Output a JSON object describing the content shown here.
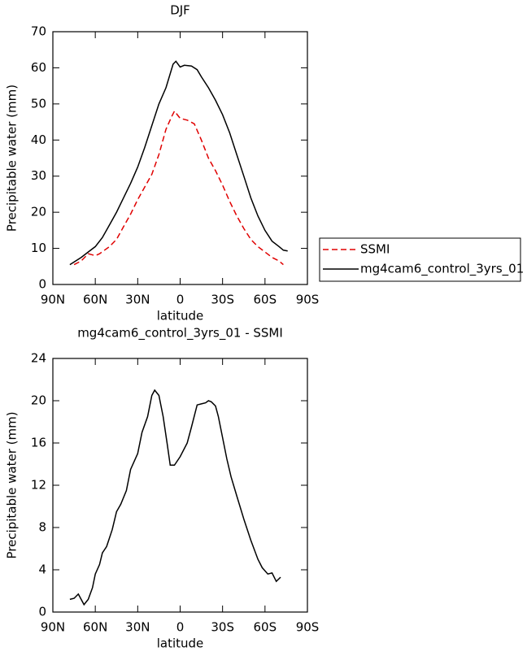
{
  "chart_data": [
    {
      "type": "line",
      "title": "DJF",
      "xlabel": "latitude",
      "ylabel": "Precipitable water (mm)",
      "xlim": [
        90,
        -90
      ],
      "xticks": [
        {
          "value": 90,
          "label": "90N"
        },
        {
          "value": 60,
          "label": "60N"
        },
        {
          "value": 30,
          "label": "30N"
        },
        0,
        {
          "value": -30,
          "label": "30S"
        },
        {
          "value": -60,
          "label": "60S"
        },
        {
          "value": -90,
          "label": "90S"
        }
      ],
      "ylim": [
        0,
        70
      ],
      "yticks": [
        0,
        10,
        20,
        30,
        40,
        50,
        60,
        70
      ],
      "legend": "right",
      "series": [
        {
          "name": "SSMI",
          "color": "#e00000",
          "dash": true,
          "x": [
            75,
            70,
            65,
            60,
            57,
            50,
            45,
            40,
            35,
            30,
            25,
            20,
            15,
            10,
            6,
            4,
            0,
            -5,
            -10,
            -15,
            -20,
            -25,
            -30,
            -35,
            -40,
            -45,
            -50,
            -55,
            -60,
            -65,
            -70,
            -73
          ],
          "values": [
            5.5,
            6.5,
            8.5,
            8,
            8.5,
            10.5,
            12.5,
            16,
            19.5,
            23.5,
            27,
            30.5,
            36,
            43,
            46.5,
            48,
            46,
            45.5,
            44.5,
            40,
            35,
            31.5,
            27.5,
            23,
            19,
            15.5,
            12.5,
            10.5,
            9,
            7.5,
            6.5,
            5.5
          ]
        },
        {
          "name": "mg4cam6_control_3yrs_01",
          "color": "#000000",
          "dash": false,
          "x": [
            78,
            70,
            65,
            60,
            55,
            50,
            45,
            40,
            35,
            30,
            25,
            20,
            15,
            10,
            5,
            3,
            0,
            -3,
            -8,
            -12,
            -15,
            -20,
            -25,
            -30,
            -35,
            -40,
            -45,
            -50,
            -55,
            -60,
            -65,
            -70,
            -73,
            -76
          ],
          "values": [
            5.5,
            7.5,
            9,
            10.5,
            13,
            16.5,
            20,
            24,
            28,
            32.5,
            38,
            44,
            50,
            54.5,
            61,
            61.8,
            60.2,
            60.7,
            60.5,
            59.5,
            57.5,
            54.5,
            51,
            47,
            42,
            36,
            30,
            24,
            19,
            15,
            12,
            10.5,
            9.5,
            9.3
          ]
        }
      ]
    },
    {
      "type": "line",
      "title": "mg4cam6_control_3yrs_01 - SSMI",
      "xlabel": "latitude",
      "ylabel": "Precipitable water (mm)",
      "xlim": [
        90,
        -90
      ],
      "xticks": [
        {
          "value": 90,
          "label": "90N"
        },
        {
          "value": 60,
          "label": "60N"
        },
        {
          "value": 30,
          "label": "30N"
        },
        0,
        {
          "value": -30,
          "label": "30S"
        },
        {
          "value": -60,
          "label": "60S"
        },
        {
          "value": -90,
          "label": "90S"
        }
      ],
      "ylim": [
        0,
        24
      ],
      "yticks": [
        0,
        4,
        8,
        12,
        16,
        20,
        24
      ],
      "series": [
        {
          "color": "#000000",
          "dash": false,
          "x": [
            78,
            75,
            72,
            68,
            65,
            62,
            60,
            57,
            55,
            52,
            48,
            45,
            42,
            38,
            35,
            30,
            27,
            23,
            20,
            18,
            15,
            12,
            9,
            7,
            4,
            0,
            -5,
            -8,
            -12,
            -15,
            -18,
            -20,
            -22,
            -25,
            -27,
            -30,
            -33,
            -36,
            -40,
            -45,
            -50,
            -55,
            -58,
            -62,
            -65,
            -68,
            -71
          ],
          "values": [
            1.2,
            1.3,
            1.7,
            0.7,
            1.2,
            2.3,
            3.6,
            4.5,
            5.6,
            6.2,
            7.8,
            9.5,
            10.2,
            11.5,
            13.5,
            15,
            17,
            18.5,
            20.5,
            21,
            20.5,
            18.5,
            15.8,
            13.9,
            13.9,
            14.7,
            16,
            17.5,
            19.6,
            19.7,
            19.8,
            20,
            19.9,
            19.5,
            18.5,
            16.5,
            14.5,
            12.8,
            11,
            8.8,
            6.8,
            5,
            4.2,
            3.6,
            3.7,
            2.9,
            3.3
          ]
        }
      ]
    }
  ]
}
